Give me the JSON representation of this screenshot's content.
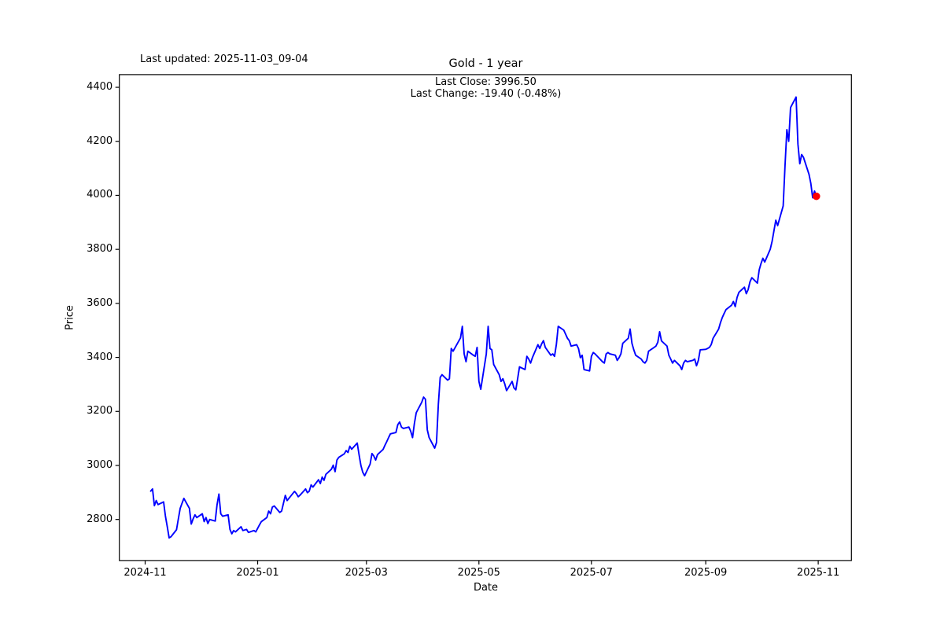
{
  "header": {
    "last_updated": "Last updated: 2025-11-03_09-04",
    "title": "Gold - 1 year"
  },
  "annotation": {
    "line1": "Last Close: 3996.50",
    "line2": "Last Change: -19.40 (-0.48%)"
  },
  "chart_data": {
    "type": "line",
    "title": "Gold - 1 year",
    "xlabel": "Date",
    "ylabel": "Price",
    "grid": false,
    "legend": null,
    "line_color": "#0000ff",
    "marker_color": "#ff0000",
    "xlim": [
      "2024-10-18",
      "2025-11-19"
    ],
    "ylim": [
      2648,
      4447
    ],
    "y_ticks": [
      2800,
      3000,
      3200,
      3400,
      3600,
      3800,
      4000,
      4200,
      4400
    ],
    "x_ticks": [
      {
        "date": "2024-11-01",
        "label": "2024-11"
      },
      {
        "date": "2025-01-01",
        "label": "2025-01"
      },
      {
        "date": "2025-03-01",
        "label": "2025-03"
      },
      {
        "date": "2025-05-01",
        "label": "2025-05"
      },
      {
        "date": "2025-07-01",
        "label": "2025-07"
      },
      {
        "date": "2025-09-01",
        "label": "2025-09"
      },
      {
        "date": "2025-11-01",
        "label": "2025-11"
      }
    ],
    "last_close": 3996.5,
    "last_change": -19.4,
    "last_change_pct": -0.48,
    "last_point_marker": {
      "date": "2025-10-31",
      "value": 3996.5
    },
    "series": [
      {
        "name": "Gold",
        "points": [
          [
            "2024-11-04",
            2905
          ],
          [
            "2024-11-05",
            2913
          ],
          [
            "2024-11-06",
            2851
          ],
          [
            "2024-11-07",
            2870
          ],
          [
            "2024-11-08",
            2855
          ],
          [
            "2024-11-11",
            2865
          ],
          [
            "2024-11-12",
            2812
          ],
          [
            "2024-11-13",
            2773
          ],
          [
            "2024-11-14",
            2732
          ],
          [
            "2024-11-15",
            2736
          ],
          [
            "2024-11-18",
            2762
          ],
          [
            "2024-11-19",
            2802
          ],
          [
            "2024-11-20",
            2841
          ],
          [
            "2024-11-21",
            2860
          ],
          [
            "2024-11-22",
            2878
          ],
          [
            "2024-11-25",
            2841
          ],
          [
            "2024-11-26",
            2783
          ],
          [
            "2024-11-27",
            2802
          ],
          [
            "2024-11-28",
            2817
          ],
          [
            "2024-11-29",
            2807
          ],
          [
            "2024-12-02",
            2821
          ],
          [
            "2024-12-03",
            2792
          ],
          [
            "2024-12-04",
            2807
          ],
          [
            "2024-12-05",
            2785
          ],
          [
            "2024-12-06",
            2800
          ],
          [
            "2024-12-09",
            2794
          ],
          [
            "2024-12-10",
            2855
          ],
          [
            "2024-12-11",
            2894
          ],
          [
            "2024-12-12",
            2821
          ],
          [
            "2024-12-13",
            2812
          ],
          [
            "2024-12-16",
            2817
          ],
          [
            "2024-12-17",
            2763
          ],
          [
            "2024-12-18",
            2747
          ],
          [
            "2024-12-19",
            2759
          ],
          [
            "2024-12-20",
            2754
          ],
          [
            "2024-12-23",
            2773
          ],
          [
            "2024-12-24",
            2759
          ],
          [
            "2024-12-26",
            2763
          ],
          [
            "2024-12-27",
            2752
          ],
          [
            "2024-12-30",
            2759
          ],
          [
            "2024-12-31",
            2754
          ],
          [
            "2025-01-02",
            2780
          ],
          [
            "2025-01-03",
            2792
          ],
          [
            "2025-01-06",
            2807
          ],
          [
            "2025-01-07",
            2831
          ],
          [
            "2025-01-08",
            2821
          ],
          [
            "2025-01-09",
            2846
          ],
          [
            "2025-01-10",
            2850
          ],
          [
            "2025-01-13",
            2826
          ],
          [
            "2025-01-14",
            2831
          ],
          [
            "2025-01-15",
            2860
          ],
          [
            "2025-01-16",
            2889
          ],
          [
            "2025-01-17",
            2870
          ],
          [
            "2025-01-21",
            2904
          ],
          [
            "2025-01-22",
            2896
          ],
          [
            "2025-01-23",
            2884
          ],
          [
            "2025-01-24",
            2890
          ],
          [
            "2025-01-27",
            2913
          ],
          [
            "2025-01-28",
            2899
          ],
          [
            "2025-01-29",
            2905
          ],
          [
            "2025-01-30",
            2928
          ],
          [
            "2025-01-31",
            2920
          ],
          [
            "2025-02-03",
            2947
          ],
          [
            "2025-02-04",
            2933
          ],
          [
            "2025-02-05",
            2957
          ],
          [
            "2025-02-06",
            2945
          ],
          [
            "2025-02-07",
            2967
          ],
          [
            "2025-02-10",
            2986
          ],
          [
            "2025-02-11",
            3001
          ],
          [
            "2025-02-12",
            2977
          ],
          [
            "2025-02-13",
            3020
          ],
          [
            "2025-02-14",
            3030
          ],
          [
            "2025-02-17",
            3043
          ],
          [
            "2025-02-18",
            3055
          ],
          [
            "2025-02-19",
            3048
          ],
          [
            "2025-02-20",
            3071
          ],
          [
            "2025-02-21",
            3060
          ],
          [
            "2025-02-24",
            3083
          ],
          [
            "2025-02-25",
            3040
          ],
          [
            "2025-02-26",
            3000
          ],
          [
            "2025-02-27",
            2975
          ],
          [
            "2025-02-28",
            2962
          ],
          [
            "2025-03-03",
            3005
          ],
          [
            "2025-03-04",
            3044
          ],
          [
            "2025-03-05",
            3035
          ],
          [
            "2025-03-06",
            3020
          ],
          [
            "2025-03-07",
            3040
          ],
          [
            "2025-03-10",
            3059
          ],
          [
            "2025-03-11",
            3074
          ],
          [
            "2025-03-12",
            3088
          ],
          [
            "2025-03-13",
            3103
          ],
          [
            "2025-03-14",
            3117
          ],
          [
            "2025-03-17",
            3122
          ],
          [
            "2025-03-18",
            3151
          ],
          [
            "2025-03-19",
            3161
          ],
          [
            "2025-03-20",
            3142
          ],
          [
            "2025-03-21",
            3137
          ],
          [
            "2025-03-24",
            3142
          ],
          [
            "2025-03-25",
            3127
          ],
          [
            "2025-03-26",
            3103
          ],
          [
            "2025-03-27",
            3155
          ],
          [
            "2025-03-28",
            3195
          ],
          [
            "2025-03-31",
            3234
          ],
          [
            "2025-04-01",
            3253
          ],
          [
            "2025-04-02",
            3245
          ],
          [
            "2025-04-03",
            3132
          ],
          [
            "2025-04-04",
            3103
          ],
          [
            "2025-04-07",
            3064
          ],
          [
            "2025-04-08",
            3085
          ],
          [
            "2025-04-09",
            3227
          ],
          [
            "2025-04-10",
            3326
          ],
          [
            "2025-04-11",
            3336
          ],
          [
            "2025-04-14",
            3316
          ],
          [
            "2025-04-15",
            3321
          ],
          [
            "2025-04-16",
            3433
          ],
          [
            "2025-04-17",
            3423
          ],
          [
            "2025-04-21",
            3472
          ],
          [
            "2025-04-22",
            3515
          ],
          [
            "2025-04-23",
            3413
          ],
          [
            "2025-04-24",
            3384
          ],
          [
            "2025-04-25",
            3423
          ],
          [
            "2025-04-28",
            3408
          ],
          [
            "2025-04-29",
            3404
          ],
          [
            "2025-04-30",
            3437
          ],
          [
            "2025-05-01",
            3311
          ],
          [
            "2025-05-02",
            3282
          ],
          [
            "2025-05-05",
            3413
          ],
          [
            "2025-05-06",
            3515
          ],
          [
            "2025-05-07",
            3433
          ],
          [
            "2025-05-08",
            3428
          ],
          [
            "2025-05-09",
            3374
          ],
          [
            "2025-05-12",
            3336
          ],
          [
            "2025-05-13",
            3311
          ],
          [
            "2025-05-14",
            3321
          ],
          [
            "2025-05-15",
            3302
          ],
          [
            "2025-05-16",
            3277
          ],
          [
            "2025-05-19",
            3311
          ],
          [
            "2025-05-20",
            3287
          ],
          [
            "2025-05-21",
            3280
          ],
          [
            "2025-05-22",
            3321
          ],
          [
            "2025-05-23",
            3365
          ],
          [
            "2025-05-26",
            3355
          ],
          [
            "2025-05-27",
            3404
          ],
          [
            "2025-05-28",
            3394
          ],
          [
            "2025-05-29",
            3379
          ],
          [
            "2025-05-30",
            3399
          ],
          [
            "2025-06-02",
            3447
          ],
          [
            "2025-06-03",
            3433
          ],
          [
            "2025-06-04",
            3450
          ],
          [
            "2025-06-05",
            3462
          ],
          [
            "2025-06-06",
            3437
          ],
          [
            "2025-06-09",
            3408
          ],
          [
            "2025-06-10",
            3413
          ],
          [
            "2025-06-11",
            3404
          ],
          [
            "2025-06-12",
            3448
          ],
          [
            "2025-06-13",
            3515
          ],
          [
            "2025-06-16",
            3501
          ],
          [
            "2025-06-17",
            3486
          ],
          [
            "2025-06-18",
            3471
          ],
          [
            "2025-06-19",
            3462
          ],
          [
            "2025-06-20",
            3442
          ],
          [
            "2025-06-23",
            3447
          ],
          [
            "2025-06-24",
            3433
          ],
          [
            "2025-06-25",
            3399
          ],
          [
            "2025-06-26",
            3408
          ],
          [
            "2025-06-27",
            3355
          ],
          [
            "2025-06-30",
            3350
          ],
          [
            "2025-07-01",
            3404
          ],
          [
            "2025-07-02",
            3418
          ],
          [
            "2025-07-03",
            3413
          ],
          [
            "2025-07-07",
            3384
          ],
          [
            "2025-07-08",
            3379
          ],
          [
            "2025-07-09",
            3413
          ],
          [
            "2025-07-10",
            3418
          ],
          [
            "2025-07-11",
            3413
          ],
          [
            "2025-07-14",
            3408
          ],
          [
            "2025-07-15",
            3389
          ],
          [
            "2025-07-16",
            3399
          ],
          [
            "2025-07-17",
            3413
          ],
          [
            "2025-07-18",
            3452
          ],
          [
            "2025-07-21",
            3471
          ],
          [
            "2025-07-22",
            3505
          ],
          [
            "2025-07-23",
            3452
          ],
          [
            "2025-07-24",
            3428
          ],
          [
            "2025-07-25",
            3408
          ],
          [
            "2025-07-28",
            3394
          ],
          [
            "2025-07-29",
            3384
          ],
          [
            "2025-07-30",
            3379
          ],
          [
            "2025-07-31",
            3389
          ],
          [
            "2025-08-01",
            3423
          ],
          [
            "2025-08-04",
            3437
          ],
          [
            "2025-08-05",
            3442
          ],
          [
            "2025-08-06",
            3456
          ],
          [
            "2025-08-07",
            3495
          ],
          [
            "2025-08-08",
            3461
          ],
          [
            "2025-08-11",
            3442
          ],
          [
            "2025-08-12",
            3408
          ],
          [
            "2025-08-13",
            3394
          ],
          [
            "2025-08-14",
            3379
          ],
          [
            "2025-08-15",
            3389
          ],
          [
            "2025-08-18",
            3369
          ],
          [
            "2025-08-19",
            3355
          ],
          [
            "2025-08-20",
            3379
          ],
          [
            "2025-08-21",
            3389
          ],
          [
            "2025-08-22",
            3384
          ],
          [
            "2025-08-25",
            3389
          ],
          [
            "2025-08-26",
            3394
          ],
          [
            "2025-08-27",
            3369
          ],
          [
            "2025-08-28",
            3389
          ],
          [
            "2025-08-29",
            3428
          ],
          [
            "2025-09-01",
            3430
          ],
          [
            "2025-09-02",
            3433
          ],
          [
            "2025-09-03",
            3437
          ],
          [
            "2025-09-04",
            3448
          ],
          [
            "2025-09-05",
            3471
          ],
          [
            "2025-09-08",
            3505
          ],
          [
            "2025-09-09",
            3529
          ],
          [
            "2025-09-10",
            3548
          ],
          [
            "2025-09-11",
            3563
          ],
          [
            "2025-09-12",
            3577
          ],
          [
            "2025-09-15",
            3593
          ],
          [
            "2025-09-16",
            3607
          ],
          [
            "2025-09-17",
            3588
          ],
          [
            "2025-09-18",
            3622
          ],
          [
            "2025-09-19",
            3641
          ],
          [
            "2025-09-22",
            3660
          ],
          [
            "2025-09-23",
            3636
          ],
          [
            "2025-09-24",
            3651
          ],
          [
            "2025-09-25",
            3680
          ],
          [
            "2025-09-26",
            3695
          ],
          [
            "2025-09-29",
            3675
          ],
          [
            "2025-09-30",
            3724
          ],
          [
            "2025-10-01",
            3748
          ],
          [
            "2025-10-02",
            3767
          ],
          [
            "2025-10-03",
            3753
          ],
          [
            "2025-10-06",
            3801
          ],
          [
            "2025-10-07",
            3830
          ],
          [
            "2025-10-08",
            3869
          ],
          [
            "2025-10-09",
            3908
          ],
          [
            "2025-10-10",
            3888
          ],
          [
            "2025-10-13",
            3961
          ],
          [
            "2025-10-14",
            4110
          ],
          [
            "2025-10-15",
            4243
          ],
          [
            "2025-10-16",
            4200
          ],
          [
            "2025-10-17",
            4325
          ],
          [
            "2025-10-20",
            4364
          ],
          [
            "2025-10-21",
            4190
          ],
          [
            "2025-10-22",
            4117
          ],
          [
            "2025-10-23",
            4151
          ],
          [
            "2025-10-24",
            4141
          ],
          [
            "2025-10-27",
            4078
          ],
          [
            "2025-10-28",
            4044
          ],
          [
            "2025-10-29",
            3991
          ],
          [
            "2025-10-30",
            4015.9
          ],
          [
            "2025-10-31",
            3996.5
          ]
        ]
      }
    ]
  }
}
